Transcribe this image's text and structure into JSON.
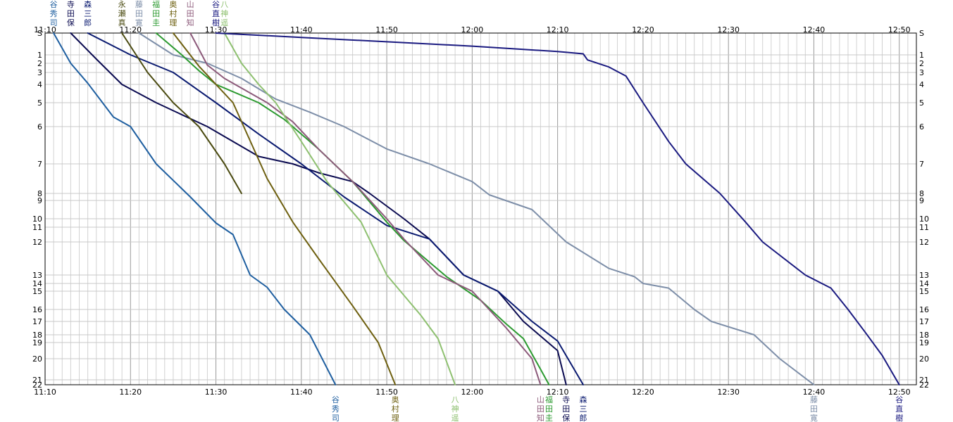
{
  "chart_data": {
    "type": "line",
    "title": "",
    "xlabel": "",
    "ylabel": "",
    "grid": true,
    "x_range": [
      "11:10",
      "12:52"
    ],
    "x_ticks": [
      "11:10",
      "11:20",
      "11:30",
      "11:40",
      "11:50",
      "12:00",
      "12:10",
      "12:20",
      "12:30",
      "12:40",
      "12:50"
    ],
    "y_ticks": [
      "S",
      "1",
      "2",
      "3",
      "4",
      "5",
      "6",
      "7",
      "8",
      "9",
      "10",
      "11",
      "12",
      "13",
      "14",
      "15",
      "16",
      "17",
      "18",
      "19",
      "20",
      "21",
      "22"
    ],
    "series": [
      {
        "name": "谷秀司",
        "color": "#1f5fa0",
        "start_label": "谷秀司",
        "end_label": "谷秀司",
        "points": [
          [
            "11:11",
            "S"
          ],
          [
            "11:13",
            "2"
          ],
          [
            "11:15",
            "3.9"
          ],
          [
            "11:18",
            "5.6"
          ],
          [
            "11:20",
            "6"
          ],
          [
            "11:23",
            "7"
          ],
          [
            "11:27",
            "8.5"
          ],
          [
            "11:30",
            "10.5"
          ],
          [
            "11:32",
            "11.5"
          ],
          [
            "11:34",
            "13"
          ],
          [
            "11:36",
            "14.5"
          ],
          [
            "11:38",
            "16"
          ],
          [
            "11:41",
            "18"
          ],
          [
            "11:44",
            "22"
          ]
        ]
      },
      {
        "name": "寺田保",
        "color": "#0a0a50",
        "start_label": "寺田保",
        "end_label": "寺田保",
        "points": [
          [
            "11:13",
            "S"
          ],
          [
            "11:16",
            "1.5"
          ],
          [
            "11:19",
            "4"
          ],
          [
            "11:23",
            "5"
          ],
          [
            "11:29",
            "6"
          ],
          [
            "11:35",
            "6.8"
          ],
          [
            "11:39",
            "7"
          ],
          [
            "11:42",
            "7.3"
          ],
          [
            "11:46",
            "7.6"
          ],
          [
            "11:48",
            "8"
          ],
          [
            "11:52",
            "10"
          ],
          [
            "11:55",
            "11.8"
          ],
          [
            "11:59",
            "13"
          ],
          [
            "12:03",
            "15"
          ],
          [
            "12:06",
            "17"
          ],
          [
            "12:10",
            "19.5"
          ],
          [
            "12:11",
            "22"
          ]
        ]
      },
      {
        "name": "森三郎",
        "color": "#0a1a70",
        "start_label": "森三郎",
        "end_label": "森三郎",
        "points": [
          [
            "11:15",
            "S"
          ],
          [
            "11:20",
            "1"
          ],
          [
            "11:25",
            "3"
          ],
          [
            "11:30",
            "5"
          ],
          [
            "11:35",
            "6.2"
          ],
          [
            "11:40",
            "7"
          ],
          [
            "11:45",
            "8.5"
          ],
          [
            "11:50",
            "10.8"
          ],
          [
            "11:55",
            "11.8"
          ],
          [
            "11:59",
            "13"
          ],
          [
            "12:03",
            "15"
          ],
          [
            "12:07",
            "17"
          ],
          [
            "12:10",
            "18.8"
          ],
          [
            "12:13",
            "22"
          ]
        ]
      },
      {
        "name": "永瀬真",
        "color": "#4a4a10",
        "start_label": "永瀬真",
        "end_label": "",
        "points": [
          [
            "11:19",
            "S"
          ],
          [
            "11:22",
            "3"
          ],
          [
            "11:25",
            "5"
          ],
          [
            "11:28",
            "6"
          ],
          [
            "11:31",
            "7"
          ],
          [
            "11:33",
            "8"
          ]
        ]
      },
      {
        "name": "藤田寛",
        "color": "#7d8ea8",
        "start_label": "藤田寛",
        "end_label": "藤田寛",
        "points": [
          [
            "11:21",
            "S"
          ],
          [
            "11:25",
            "1"
          ],
          [
            "11:29",
            "2"
          ],
          [
            "11:33",
            "3.5"
          ],
          [
            "11:37",
            "4.8"
          ],
          [
            "11:41",
            "5.4"
          ],
          [
            "11:45",
            "6"
          ],
          [
            "11:50",
            "6.6"
          ],
          [
            "11:55",
            "7"
          ],
          [
            "12:00",
            "7.6"
          ],
          [
            "12:02",
            "8.2"
          ],
          [
            "12:07",
            "9.5"
          ],
          [
            "12:11",
            "12"
          ],
          [
            "12:16",
            "12.8"
          ],
          [
            "12:19",
            "13.2"
          ],
          [
            "12:20",
            "14"
          ],
          [
            "12:23",
            "14.6"
          ],
          [
            "12:26",
            "16"
          ],
          [
            "12:28",
            "17"
          ],
          [
            "12:33",
            "18"
          ],
          [
            "12:36",
            "20"
          ],
          [
            "12:40",
            "22"
          ]
        ]
      },
      {
        "name": "福田圭",
        "color": "#2c9a30",
        "start_label": "福田圭",
        "end_label": "福田圭",
        "points": [
          [
            "11:23",
            "S"
          ],
          [
            "11:26",
            "1"
          ],
          [
            "11:28",
            "2.8"
          ],
          [
            "11:30",
            "4"
          ],
          [
            "11:35",
            "5"
          ],
          [
            "11:38",
            "5.7"
          ],
          [
            "11:42",
            "6.6"
          ],
          [
            "11:46",
            "7.6"
          ],
          [
            "11:50",
            "10.4"
          ],
          [
            "11:52",
            "11.9"
          ],
          [
            "11:57",
            "13.2"
          ],
          [
            "12:01",
            "15.5"
          ],
          [
            "12:04",
            "17.2"
          ],
          [
            "12:06",
            "18.5"
          ],
          [
            "12:08",
            "20.5"
          ],
          [
            "12:09",
            "22"
          ]
        ]
      },
      {
        "name": "奥村理",
        "color": "#6e6010",
        "start_label": "奥村理",
        "end_label": "奥村理",
        "points": [
          [
            "11:25",
            "S"
          ],
          [
            "11:28",
            "2.3"
          ],
          [
            "11:32",
            "5"
          ],
          [
            "11:36",
            "7.5"
          ],
          [
            "11:39",
            "10.4"
          ],
          [
            "11:42",
            "12.5"
          ],
          [
            "11:46",
            "15.8"
          ],
          [
            "11:49",
            "19"
          ],
          [
            "11:51",
            "22"
          ]
        ]
      },
      {
        "name": "山田知",
        "color": "#8c5a7a",
        "start_label": "山田知",
        "end_label": "山田知",
        "points": [
          [
            "11:27",
            "S"
          ],
          [
            "11:29",
            "2.2"
          ],
          [
            "11:31",
            "3.5"
          ],
          [
            "11:36",
            "5"
          ],
          [
            "11:39",
            "5.8"
          ],
          [
            "11:42",
            "6.6"
          ],
          [
            "11:46",
            "7.6"
          ],
          [
            "11:50",
            "10"
          ],
          [
            "11:52",
            "11.8"
          ],
          [
            "11:56",
            "13"
          ],
          [
            "12:00",
            "15"
          ],
          [
            "12:04",
            "17.5"
          ],
          [
            "12:07",
            "20"
          ],
          [
            "12:08",
            "22"
          ]
        ]
      },
      {
        "name": "八神遥",
        "color": "#8ec070",
        "start_label": "八神遥",
        "end_label": "八神遥",
        "points": [
          [
            "11:31",
            "S"
          ],
          [
            "11:33",
            "2"
          ],
          [
            "11:35",
            "4"
          ],
          [
            "11:37",
            "5"
          ],
          [
            "11:40",
            "6.4"
          ],
          [
            "11:43",
            "7.6"
          ],
          [
            "11:47",
            "10.4"
          ],
          [
            "11:50",
            "13"
          ],
          [
            "11:54",
            "16.5"
          ],
          [
            "11:56",
            "18.5"
          ],
          [
            "11:58",
            "22"
          ]
        ]
      },
      {
        "name": "谷直樹",
        "color": "#1a1a80",
        "start_label": "谷直樹",
        "end_label": "谷直樹",
        "points": [
          [
            "11:30",
            "S"
          ],
          [
            "11:40",
            "0.2"
          ],
          [
            "11:50",
            "0.4"
          ],
          [
            "12:00",
            "0.6"
          ],
          [
            "12:10",
            "0.85"
          ],
          [
            "12:13",
            "0.95"
          ],
          [
            "12:13.5",
            "1.6"
          ],
          [
            "12:16",
            "2.4"
          ],
          [
            "12:18",
            "3.3"
          ],
          [
            "12:20",
            "5"
          ],
          [
            "12:23",
            "6.4"
          ],
          [
            "12:25",
            "7"
          ],
          [
            "12:29",
            "8"
          ],
          [
            "12:32",
            "10.4"
          ],
          [
            "12:34",
            "12"
          ],
          [
            "12:39",
            "13"
          ],
          [
            "12:42",
            "14.6"
          ],
          [
            "12:44",
            "16"
          ],
          [
            "12:46",
            "17.8"
          ],
          [
            "12:48",
            "19.8"
          ],
          [
            "12:50",
            "22"
          ]
        ]
      }
    ]
  }
}
